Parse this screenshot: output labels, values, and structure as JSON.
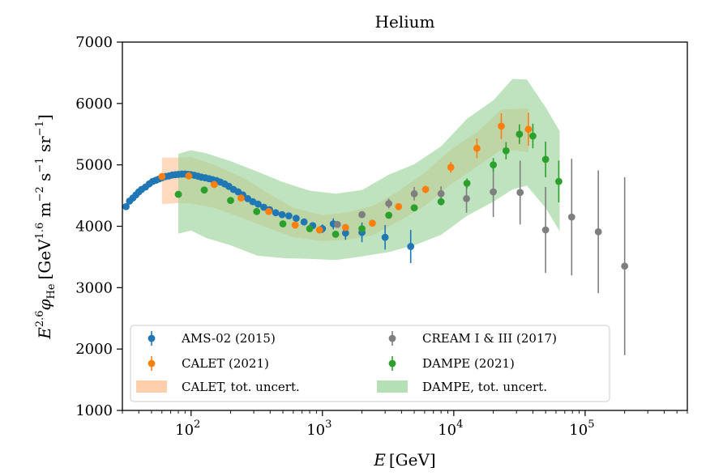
{
  "chart_data": {
    "type": "scatter",
    "title": "Helium",
    "xlabel": "E [GeV]",
    "ylabel": "E^2.6 φHe [GeV^1.6 m^-2 s^-1 sr^-1]",
    "xscale": "log",
    "xlim": [
      30,
      600000
    ],
    "ylim": [
      1000,
      7000
    ],
    "yticks": [
      1000,
      2000,
      3000,
      4000,
      5000,
      6000,
      7000
    ],
    "xticks": [
      {
        "value": 100,
        "label": "10",
        "exp": "2"
      },
      {
        "value": 1000,
        "label": "10",
        "exp": "3"
      },
      {
        "value": 10000,
        "label": "10",
        "exp": "4"
      },
      {
        "value": 100000,
        "label": "10",
        "exp": "5"
      }
    ],
    "legend_position": "lower-left",
    "series": [
      {
        "name": "AMS-02 (2015)",
        "color": "#1f77b4",
        "kind": "errorbar",
        "points": [
          [
            32,
            4320,
            0,
            0
          ],
          [
            34,
            4410,
            0,
            0
          ],
          [
            36,
            4460,
            0,
            0
          ],
          [
            38,
            4510,
            0,
            0
          ],
          [
            40,
            4560,
            0,
            0
          ],
          [
            42,
            4600,
            0,
            0
          ],
          [
            45,
            4640,
            0,
            0
          ],
          [
            48,
            4690,
            0,
            0
          ],
          [
            51,
            4730,
            0,
            0
          ],
          [
            54,
            4750,
            0,
            0
          ],
          [
            57,
            4770,
            0,
            0
          ],
          [
            60,
            4790,
            0,
            0
          ],
          [
            64,
            4810,
            0,
            0
          ],
          [
            68,
            4820,
            0,
            0
          ],
          [
            72,
            4835,
            0,
            0
          ],
          [
            76,
            4840,
            0,
            0
          ],
          [
            80,
            4845,
            0,
            0
          ],
          [
            85,
            4850,
            0,
            0
          ],
          [
            90,
            4850,
            0,
            0
          ],
          [
            95,
            4845,
            0,
            0
          ],
          [
            100,
            4840,
            0,
            0
          ],
          [
            106,
            4830,
            0,
            0
          ],
          [
            113,
            4815,
            0,
            0
          ],
          [
            120,
            4800,
            0,
            0
          ],
          [
            128,
            4790,
            0,
            0
          ],
          [
            137,
            4775,
            0,
            0
          ],
          [
            146,
            4760,
            0,
            0
          ],
          [
            156,
            4745,
            0,
            0
          ],
          [
            167,
            4720,
            0,
            0
          ],
          [
            180,
            4690,
            0,
            0
          ],
          [
            194,
            4650,
            0,
            0
          ],
          [
            210,
            4600,
            0,
            0
          ],
          [
            228,
            4560,
            0,
            0
          ],
          [
            248,
            4510,
            0,
            0
          ],
          [
            270,
            4450,
            0,
            0
          ],
          [
            295,
            4400,
            0,
            0
          ],
          [
            324,
            4360,
            0,
            0
          ],
          [
            358,
            4310,
            0,
            0
          ],
          [
            396,
            4270,
            0,
            0
          ],
          [
            441,
            4220,
            0,
            0
          ],
          [
            493,
            4190,
            0,
            0
          ],
          [
            555,
            4170,
            0,
            0
          ],
          [
            631,
            4130,
            0,
            0
          ],
          [
            725,
            4070,
            0,
            0
          ],
          [
            843,
            4010,
            0,
            0
          ],
          [
            1000,
            3960,
            70,
            70
          ],
          [
            1210,
            4040,
            90,
            90
          ],
          [
            1500,
            3890,
            110,
            110
          ],
          [
            2000,
            3900,
            160,
            160
          ],
          [
            3000,
            3820,
            200,
            200
          ],
          [
            4700,
            3670,
            270,
            270
          ]
        ]
      },
      {
        "name": "CALET (2021)",
        "color": "#ff7f0e",
        "kind": "errorbar",
        "points": [
          [
            60,
            4810,
            0,
            0
          ],
          [
            96,
            4820,
            0,
            0
          ],
          [
            150,
            4680,
            0,
            0
          ],
          [
            240,
            4460,
            0,
            0
          ],
          [
            390,
            4240,
            0,
            0
          ],
          [
            620,
            4020,
            0,
            0
          ],
          [
            950,
            3940,
            0,
            0
          ],
          [
            1500,
            3980,
            0,
            0
          ],
          [
            2400,
            4050,
            0,
            0
          ],
          [
            3800,
            4320,
            0,
            0
          ],
          [
            6100,
            4600,
            60,
            60
          ],
          [
            9500,
            4960,
            90,
            90
          ],
          [
            15000,
            5270,
            160,
            160
          ],
          [
            23000,
            5630,
            210,
            210
          ],
          [
            37000,
            5580,
            270,
            270
          ]
        ]
      },
      {
        "name": "CREAM I & III (2017)",
        "color": "#7f7f7f",
        "kind": "errorbar",
        "points": [
          [
            1300,
            4030,
            0,
            0
          ],
          [
            2000,
            4190,
            0,
            0
          ],
          [
            3200,
            4370,
            80,
            80
          ],
          [
            5000,
            4530,
            110,
            110
          ],
          [
            8000,
            4530,
            120,
            120
          ],
          [
            12500,
            4450,
            230,
            230
          ],
          [
            20000,
            4560,
            410,
            410
          ],
          [
            32000,
            4550,
            520,
            520
          ],
          [
            50000,
            3940,
            700,
            700
          ],
          [
            79000,
            4150,
            950,
            950
          ],
          [
            126000,
            3910,
            1000,
            1000
          ],
          [
            200000,
            3350,
            1450,
            1450
          ]
        ]
      },
      {
        "name": "DAMPE (2021)",
        "color": "#2ca02c",
        "kind": "errorbar",
        "points": [
          [
            80,
            4520,
            0,
            0
          ],
          [
            126,
            4590,
            0,
            0
          ],
          [
            200,
            4420,
            0,
            0
          ],
          [
            316,
            4240,
            0,
            0
          ],
          [
            500,
            4040,
            0,
            0
          ],
          [
            800,
            3960,
            0,
            0
          ],
          [
            1260,
            3870,
            0,
            0
          ],
          [
            2000,
            3960,
            0,
            0
          ],
          [
            3200,
            4180,
            0,
            0
          ],
          [
            5000,
            4300,
            0,
            0
          ],
          [
            8000,
            4400,
            60,
            60
          ],
          [
            12600,
            4700,
            80,
            80
          ],
          [
            20000,
            5000,
            110,
            110
          ],
          [
            25000,
            5230,
            140,
            140
          ],
          [
            31600,
            5500,
            160,
            160
          ],
          [
            40000,
            5470,
            200,
            200
          ],
          [
            50000,
            5090,
            290,
            290
          ],
          [
            63000,
            4730,
            340,
            340
          ]
        ]
      },
      {
        "name": "CALET, tot. uncert.",
        "color": "#ffbb88",
        "kind": "band",
        "x": [
          60,
          80,
          100,
          150,
          250,
          400,
          600,
          1000,
          1500,
          2400,
          3800,
          6000,
          9500,
          15000,
          23000,
          37000
        ],
        "low": [
          4360,
          4380,
          4370,
          4300,
          4130,
          3960,
          3820,
          3760,
          3780,
          3850,
          4080,
          4330,
          4680,
          4970,
          5250,
          5210
        ],
        "high": [
          5120,
          5120,
          5130,
          5000,
          4790,
          4520,
          4300,
          4180,
          4220,
          4330,
          4570,
          4870,
          5250,
          5530,
          5900,
          5920
        ]
      },
      {
        "name": "DAMPE, tot. uncert.",
        "color": "#96d296",
        "kind": "band",
        "x": [
          80,
          100,
          130,
          200,
          320,
          500,
          800,
          1260,
          2000,
          3200,
          5000,
          8000,
          12600,
          20000,
          28000,
          36000,
          50000,
          64000
        ],
        "low": [
          3880,
          3930,
          3810,
          3690,
          3520,
          3480,
          3470,
          3450,
          3510,
          3580,
          3690,
          3860,
          4170,
          4400,
          4600,
          4660,
          4300,
          3920
        ],
        "high": [
          5180,
          5240,
          5190,
          5060,
          4890,
          4720,
          4580,
          4530,
          4590,
          4840,
          5010,
          5300,
          5750,
          6050,
          6400,
          6390,
          5940,
          5550
        ]
      }
    ]
  }
}
